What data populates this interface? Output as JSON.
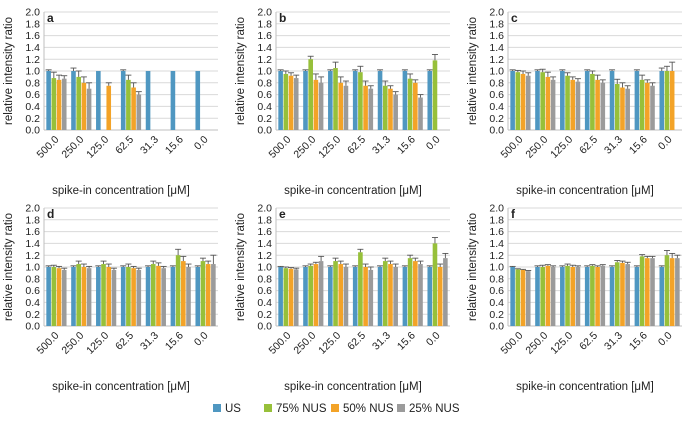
{
  "legend": [
    {
      "name": "US",
      "color": "#4f97c1"
    },
    {
      "name": "75% NUS",
      "color": "#97c03a"
    },
    {
      "name": "50% NUS",
      "color": "#f3a328"
    },
    {
      "name": "25% NUS",
      "color": "#9b9b9b"
    }
  ],
  "chart_data": [
    {
      "panel": "a",
      "type": "bar",
      "ylabel": "relative intensity ratio",
      "xlabel": "spike-in concentration [μM]",
      "ylim": [
        0,
        2.0
      ],
      "ytick_step": 0.2,
      "grid": true,
      "categories": [
        "500.0",
        "250.0",
        "125.0",
        "62.5",
        "31.3",
        "15.6",
        "0.0"
      ],
      "series": [
        {
          "name": "US",
          "values": [
            1.0,
            1.0,
            1.0,
            1.0,
            1.0,
            1.0,
            1.0
          ],
          "errors": [
            0.02,
            0.05,
            0.0,
            0.02,
            0.0,
            0.0,
            0.0
          ]
        },
        {
          "name": "75% NUS",
          "values": [
            0.88,
            0.9,
            null,
            0.85,
            null,
            null,
            null
          ],
          "errors": [
            0.1,
            0.1,
            0,
            0.08,
            0,
            0,
            0
          ]
        },
        {
          "name": "50% NUS",
          "values": [
            0.85,
            0.8,
            0.75,
            0.72,
            null,
            null,
            null
          ],
          "errors": [
            0.08,
            0.1,
            0.05,
            0.08,
            0,
            0,
            0
          ]
        },
        {
          "name": "25% NUS",
          "values": [
            0.87,
            0.7,
            null,
            0.6,
            null,
            null,
            null
          ],
          "errors": [
            0.05,
            0.1,
            0,
            0.05,
            0,
            0,
            0
          ]
        }
      ]
    },
    {
      "panel": "b",
      "type": "bar",
      "ylabel": "relative intensity ratio",
      "xlabel": "spike-in concentration [μM]",
      "ylim": [
        0,
        2.0
      ],
      "ytick_step": 0.2,
      "grid": true,
      "categories": [
        "500.0",
        "250.0",
        "125.0",
        "62.5",
        "31.3",
        "15.6",
        "0.0"
      ],
      "series": [
        {
          "name": "US",
          "values": [
            1.0,
            1.0,
            1.0,
            1.0,
            1.0,
            1.0,
            1.0
          ],
          "errors": [
            0.02,
            0.02,
            0.02,
            0.02,
            0.02,
            0.02,
            0.02
          ]
        },
        {
          "name": "75% NUS",
          "values": [
            0.95,
            1.2,
            1.05,
            0.98,
            0.75,
            0.87,
            1.18
          ],
          "errors": [
            0.05,
            0.05,
            0.1,
            0.1,
            0.08,
            0.08,
            0.1
          ]
        },
        {
          "name": "50% NUS",
          "values": [
            0.92,
            0.85,
            0.8,
            0.75,
            0.7,
            0.8,
            null
          ],
          "errors": [
            0.05,
            0.1,
            0.1,
            0.08,
            0.05,
            0.05,
            0
          ]
        },
        {
          "name": "25% NUS",
          "values": [
            0.88,
            0.8,
            0.75,
            0.7,
            0.6,
            0.55,
            null
          ],
          "errors": [
            0.05,
            0.1,
            0.08,
            0.05,
            0.05,
            0.05,
            0
          ]
        }
      ]
    },
    {
      "panel": "c",
      "type": "bar",
      "ylabel": "relative intensity ratio",
      "xlabel": "spike-in concentration [μM]",
      "ylim": [
        0,
        2.0
      ],
      "ytick_step": 0.2,
      "grid": true,
      "categories": [
        "500.0",
        "250.0",
        "125.0",
        "62.5",
        "31.3",
        "15.6",
        "0.0"
      ],
      "series": [
        {
          "name": "US",
          "values": [
            1.0,
            1.0,
            1.0,
            1.0,
            1.0,
            1.0,
            1.0
          ],
          "errors": [
            0.02,
            0.02,
            0.02,
            0.02,
            0.02,
            0.02,
            0.05
          ]
        },
        {
          "name": "75% NUS",
          "values": [
            0.98,
            0.98,
            0.92,
            0.95,
            0.78,
            0.85,
            1.0
          ],
          "errors": [
            0.03,
            0.05,
            0.05,
            0.05,
            0.08,
            0.08,
            0.08
          ]
        },
        {
          "name": "50% NUS",
          "values": [
            0.95,
            0.9,
            0.85,
            0.85,
            0.72,
            0.8,
            1.0
          ],
          "errors": [
            0.05,
            0.08,
            0.05,
            0.08,
            0.08,
            0.05,
            0.15
          ]
        },
        {
          "name": "25% NUS",
          "values": [
            0.92,
            0.85,
            0.82,
            0.8,
            0.7,
            0.75,
            null
          ],
          "errors": [
            0.05,
            0.05,
            0.05,
            0.05,
            0.05,
            0.05,
            0
          ]
        }
      ]
    },
    {
      "panel": "d",
      "type": "bar",
      "ylabel": "relative intensity ratio",
      "xlabel": "spike-in concentration [μM]",
      "ylim": [
        0,
        2.0
      ],
      "ytick_step": 0.2,
      "grid": true,
      "categories": [
        "500.0",
        "250.0",
        "125.0",
        "62.5",
        "31.3",
        "15.6",
        "0.0"
      ],
      "series": [
        {
          "name": "US",
          "values": [
            1.0,
            1.0,
            1.0,
            1.0,
            1.0,
            1.0,
            1.0
          ],
          "errors": [
            0.02,
            0.02,
            0.02,
            0.02,
            0.02,
            0.02,
            0.02
          ]
        },
        {
          "name": "75% NUS",
          "values": [
            1.0,
            1.05,
            1.05,
            1.0,
            1.05,
            1.2,
            1.1
          ],
          "errors": [
            0.03,
            0.05,
            0.05,
            0.05,
            0.05,
            0.1,
            0.05
          ]
        },
        {
          "name": "50% NUS",
          "values": [
            0.98,
            1.0,
            1.0,
            0.98,
            1.02,
            1.1,
            1.05
          ],
          "errors": [
            0.03,
            0.05,
            0.05,
            0.03,
            0.05,
            0.08,
            0.05
          ]
        },
        {
          "name": "25% NUS",
          "values": [
            0.95,
            0.98,
            0.95,
            0.95,
            0.98,
            1.0,
            1.05
          ],
          "errors": [
            0.03,
            0.03,
            0.03,
            0.03,
            0.03,
            0.05,
            0.15
          ]
        }
      ]
    },
    {
      "panel": "e",
      "type": "bar",
      "ylabel": "relative intensity ratio",
      "xlabel": "spike-in concentration [μM]",
      "ylim": [
        0,
        2.0
      ],
      "ytick_step": 0.2,
      "grid": true,
      "categories": [
        "500.0",
        "250.0",
        "125.0",
        "62.5",
        "31.3",
        "15.6",
        "0.0"
      ],
      "series": [
        {
          "name": "US",
          "values": [
            1.0,
            1.0,
            1.0,
            1.0,
            1.0,
            1.0,
            1.0
          ],
          "errors": [
            0.01,
            0.02,
            0.02,
            0.02,
            0.02,
            0.02,
            0.02
          ]
        },
        {
          "name": "75% NUS",
          "values": [
            0.98,
            1.02,
            1.1,
            1.25,
            1.1,
            1.15,
            1.4
          ],
          "errors": [
            0.02,
            0.03,
            0.05,
            0.05,
            0.05,
            0.05,
            0.1
          ]
        },
        {
          "name": "50% NUS",
          "values": [
            0.97,
            1.05,
            1.05,
            1.0,
            1.05,
            1.1,
            1.0
          ],
          "errors": [
            0.02,
            0.03,
            0.05,
            0.05,
            0.05,
            0.05,
            0.05
          ]
        },
        {
          "name": "25% NUS",
          "values": [
            0.96,
            1.1,
            1.0,
            0.95,
            1.0,
            1.05,
            1.15
          ],
          "errors": [
            0.02,
            0.08,
            0.05,
            0.05,
            0.05,
            0.05,
            0.08
          ]
        }
      ]
    },
    {
      "panel": "f",
      "type": "bar",
      "ylabel": "relative intensity ratio",
      "xlabel": "spike-in concentration [μM]",
      "ylim": [
        0,
        2.0
      ],
      "ytick_step": 0.2,
      "grid": true,
      "categories": [
        "500.0",
        "250.0",
        "125.0",
        "62.5",
        "31.3",
        "15.6",
        "0.0"
      ],
      "series": [
        {
          "name": "US",
          "values": [
            1.0,
            1.0,
            1.0,
            1.0,
            1.0,
            1.0,
            1.0
          ],
          "errors": [
            0.01,
            0.02,
            0.02,
            0.02,
            0.02,
            0.02,
            0.02
          ]
        },
        {
          "name": "75% NUS",
          "values": [
            0.96,
            1.0,
            1.02,
            1.02,
            1.08,
            1.18,
            1.2
          ],
          "errors": [
            0.01,
            0.03,
            0.03,
            0.02,
            0.03,
            0.03,
            0.08
          ]
        },
        {
          "name": "50% NUS",
          "values": [
            0.95,
            1.02,
            1.0,
            1.0,
            1.07,
            1.15,
            1.15
          ],
          "errors": [
            0.01,
            0.02,
            0.03,
            0.02,
            0.03,
            0.03,
            0.08
          ]
        },
        {
          "name": "25% NUS",
          "values": [
            0.93,
            1.0,
            1.0,
            1.02,
            1.05,
            1.15,
            1.15
          ],
          "errors": [
            0.01,
            0.02,
            0.02,
            0.02,
            0.03,
            0.03,
            0.05
          ]
        }
      ]
    }
  ]
}
